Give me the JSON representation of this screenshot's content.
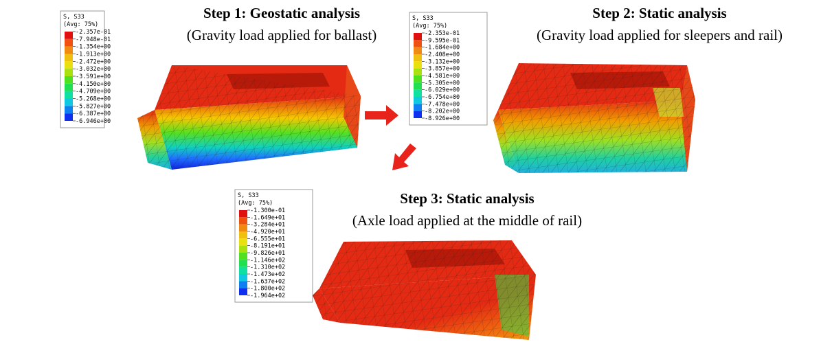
{
  "panels": [
    {
      "title": "Step 1: Geostatic analysis",
      "subtitle": "(Gravity load applied for ballast)",
      "legend": {
        "title": "S, S33",
        "subtitle": "(Avg: 75%)",
        "values": [
          "-2.357e-01",
          "-7.948e-01",
          "-1.354e+00",
          "-1.913e+00",
          "-2.472e+00",
          "-3.032e+00",
          "-3.591e+00",
          "-4.150e+00",
          "-4.709e+00",
          "-5.268e+00",
          "-5.827e+00",
          "-6.387e+00",
          "-6.946e+00"
        ]
      }
    },
    {
      "title": "Step 2: Static analysis",
      "subtitle": "(Gravity load applied for sleepers and rail)",
      "legend": {
        "title": "S, S33",
        "subtitle": "(Avg: 75%)",
        "values": [
          "-2.353e-01",
          "-9.595e-01",
          "-1.684e+00",
          "-2.408e+00",
          "-3.132e+00",
          "-3.857e+00",
          "-4.581e+00",
          "-5.305e+00",
          "-6.029e+00",
          "-6.754e+00",
          "-7.478e+00",
          "-8.202e+00",
          "-8.926e+00"
        ]
      }
    },
    {
      "title": "Step 3: Static analysis",
      "subtitle": "(Axle load applied at the middle of rail)",
      "legend": {
        "title": "S, S33",
        "subtitle": "(Avg: 75%)",
        "values": [
          "-1.300e-01",
          "-1.649e+01",
          "-3.284e+01",
          "-4.920e+01",
          "-6.555e+01",
          "-8.191e+01",
          "-9.826e+01",
          "-1.146e+02",
          "-1.310e+02",
          "-1.473e+02",
          "-1.637e+02",
          "-1.800e+02",
          "-1.964e+02"
        ]
      }
    }
  ]
}
